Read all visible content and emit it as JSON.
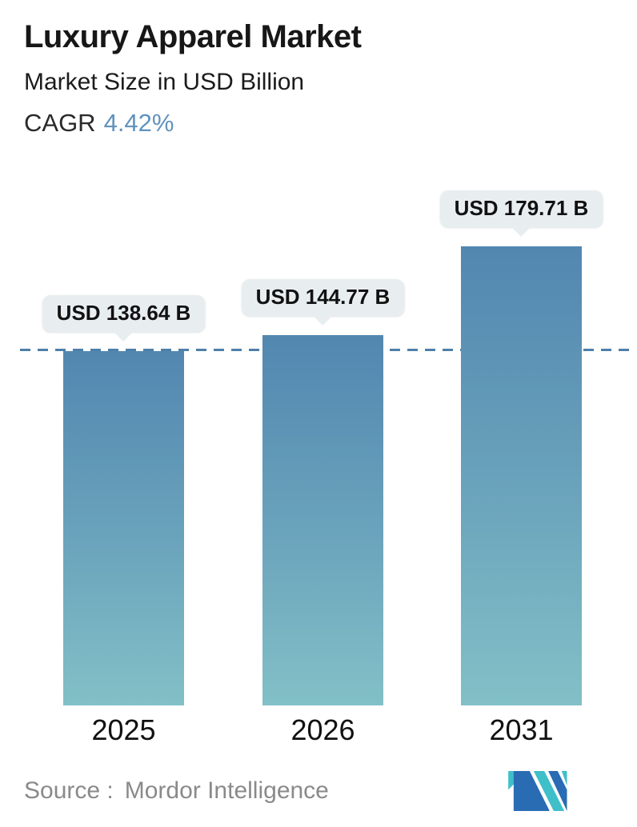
{
  "header": {
    "title": "Luxury Apparel Market",
    "subtitle": "Market Size in USD Billion",
    "cagr_label": "CAGR",
    "cagr_value": "4.42%"
  },
  "chart_data": {
    "type": "bar",
    "title": "Luxury Apparel Market",
    "subtitle": "Market Size in USD Billion",
    "unit": "USD Billion",
    "cagr_pct": 4.42,
    "categories": [
      "2025",
      "2026",
      "2031"
    ],
    "values": [
      138.64,
      144.77,
      179.71
    ],
    "bar_labels": [
      "USD 138.64 B",
      "USD 144.77 B",
      "USD 179.71 B"
    ],
    "ylim": [
      0,
      195
    ],
    "grid": false,
    "legend": "none",
    "reference_line": {
      "value": 138.64,
      "style": "dashed",
      "color": "#4d7fa9"
    },
    "colors": {
      "bar_gradient_top": "#5287b0",
      "bar_gradient_bottom": "#82c0c7",
      "label_bubble_bg": "#e8eef0",
      "cagr_value": "#6193be",
      "dashed_line": "#4d7fa9",
      "logo_blue": "#2a6cb3",
      "logo_teal": "#3fbfca"
    }
  },
  "footer": {
    "source_label": "Source :",
    "source_value": "Mordor Intelligence",
    "logo": "mordor-intelligence-logo"
  }
}
